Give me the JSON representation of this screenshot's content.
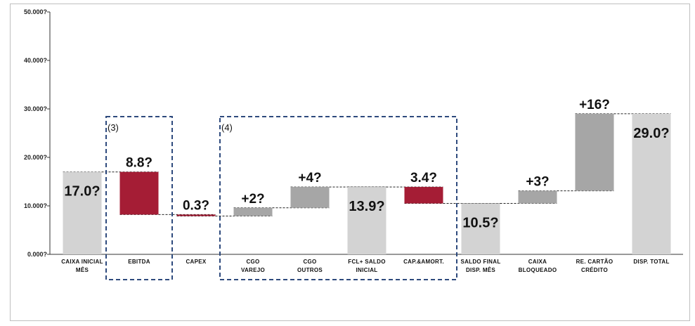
{
  "chart_data": {
    "type": "bar",
    "subtype": "waterfall",
    "yticks": [
      "0.000?",
      "10.000?",
      "20.000?",
      "30.000?",
      "40.000?",
      "50.000?"
    ],
    "ylim": [
      0,
      50000
    ],
    "grid": false,
    "legend": "none",
    "colors": {
      "total": "#d3d3d3",
      "increase": "#a6a6a6",
      "decrease": "#a51d35"
    },
    "bars": [
      {
        "label": [
          "Caixa Inicial",
          "Mês"
        ],
        "kind": "total",
        "start": 0,
        "end": 17000,
        "data_label": "17.0?",
        "label_pos": "inside"
      },
      {
        "label": [
          "EBITDA"
        ],
        "kind": "decrease",
        "start": 17000,
        "end": 8200,
        "data_label": "8.8?",
        "label_pos": "above"
      },
      {
        "label": [
          "CAPEX"
        ],
        "kind": "decrease",
        "start": 8200,
        "end": 7900,
        "data_label": "0.3?",
        "label_pos": "above"
      },
      {
        "label": [
          "CGO",
          "Varejo"
        ],
        "kind": "increase",
        "start": 7900,
        "end": 9600,
        "data_label": "+2?",
        "label_pos": "above"
      },
      {
        "label": [
          "CGO",
          "Outros"
        ],
        "kind": "increase",
        "start": 9600,
        "end": 13900,
        "data_label": "+4?",
        "label_pos": "above"
      },
      {
        "label": [
          "FCL+ Saldo",
          "Inicial"
        ],
        "kind": "total",
        "start": 0,
        "end": 13900,
        "data_label": "13.9?",
        "label_pos": "inside"
      },
      {
        "label": [
          "Cap.&Amort."
        ],
        "kind": "decrease",
        "start": 13900,
        "end": 10500,
        "data_label": "3.4?",
        "label_pos": "above"
      },
      {
        "label": [
          "Saldo Final",
          "Disp. Mês"
        ],
        "kind": "total",
        "start": 0,
        "end": 10500,
        "data_label": "10.5?",
        "label_pos": "inside"
      },
      {
        "label": [
          "Caixa",
          "Bloqueado"
        ],
        "kind": "increase",
        "start": 10500,
        "end": 13100,
        "data_label": "+3?",
        "label_pos": "above"
      },
      {
        "label": [
          "Re. Cartão",
          "Crédito"
        ],
        "kind": "increase",
        "start": 13100,
        "end": 29000,
        "data_label": "+16?",
        "label_pos": "above"
      },
      {
        "label": [
          "Disp. Total"
        ],
        "kind": "total",
        "start": 0,
        "end": 29000,
        "data_label": "29.0?",
        "label_pos": "inside"
      }
    ],
    "annotations": [
      {
        "text": "(3)",
        "first_bar": 1,
        "last_bar": 1
      },
      {
        "text": "(4)",
        "first_bar": 3,
        "last_bar": 6
      }
    ]
  }
}
